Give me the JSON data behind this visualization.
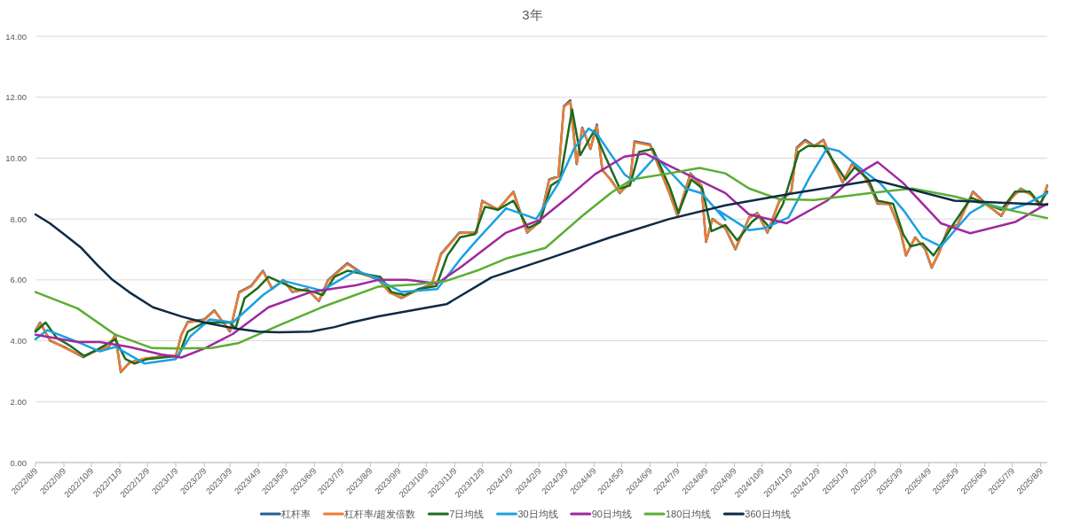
{
  "chart_data": {
    "type": "line",
    "title": "3年",
    "xlim": [
      "2022-08-09",
      "2025-08-16"
    ],
    "ylim": [
      0,
      14
    ],
    "xticks": [
      {
        "value": "2022-08-09",
        "label": "2022/8/9"
      },
      {
        "value": "2022-09-09",
        "label": "2022/9/9"
      },
      {
        "value": "2022-10-09",
        "label": "2022/10/9"
      },
      {
        "value": "2022-11-09",
        "label": "2022/11/9"
      },
      {
        "value": "2022-12-09",
        "label": "2022/12/9"
      },
      {
        "value": "2023-01-09",
        "label": "2023/1/9"
      },
      {
        "value": "2023-02-09",
        "label": "2023/2/9"
      },
      {
        "value": "2023-03-09",
        "label": "2023/3/9"
      },
      {
        "value": "2023-04-09",
        "label": "2023/4/9"
      },
      {
        "value": "2023-05-09",
        "label": "2023/5/9"
      },
      {
        "value": "2023-06-09",
        "label": "2023/6/9"
      },
      {
        "value": "2023-07-09",
        "label": "2023/7/9"
      },
      {
        "value": "2023-08-09",
        "label": "2023/8/9"
      },
      {
        "value": "2023-09-09",
        "label": "2023/9/9"
      },
      {
        "value": "2023-10-09",
        "label": "2023/10/9"
      },
      {
        "value": "2023-11-09",
        "label": "2023/11/9"
      },
      {
        "value": "2023-12-09",
        "label": "2023/12/9"
      },
      {
        "value": "2024-01-09",
        "label": "2024/1/9"
      },
      {
        "value": "2024-02-09",
        "label": "2024/2/9"
      },
      {
        "value": "2024-03-09",
        "label": "2024/3/9"
      },
      {
        "value": "2024-04-09",
        "label": "2024/4/9"
      },
      {
        "value": "2024-05-09",
        "label": "2024/5/9"
      },
      {
        "value": "2024-06-09",
        "label": "2024/6/9"
      },
      {
        "value": "2024-07-09",
        "label": "2024/7/9"
      },
      {
        "value": "2024-08-09",
        "label": "2024/8/9"
      },
      {
        "value": "2024-09-09",
        "label": "2024/9/9"
      },
      {
        "value": "2024-10-09",
        "label": "2024/10/9"
      },
      {
        "value": "2024-11-09",
        "label": "2024/11/9"
      },
      {
        "value": "2024-12-09",
        "label": "2024/12/9"
      },
      {
        "value": "2025-01-09",
        "label": "2025/1/9"
      },
      {
        "value": "2025-02-09",
        "label": "2025/2/9"
      },
      {
        "value": "2025-03-09",
        "label": "2025/3/9"
      },
      {
        "value": "2025-04-09",
        "label": "2025/4/9"
      },
      {
        "value": "2025-05-09",
        "label": "2025/5/9"
      },
      {
        "value": "2025-06-09",
        "label": "2025/6/9"
      },
      {
        "value": "2025-07-09",
        "label": "2025/7/9"
      },
      {
        "value": "2025-08-09",
        "label": "2025/8/9"
      }
    ],
    "yticks": [
      {
        "value": 0,
        "label": "0.00"
      },
      {
        "value": 2,
        "label": "2.00"
      },
      {
        "value": 4,
        "label": "4.00"
      },
      {
        "value": 6,
        "label": "6.00"
      },
      {
        "value": 8,
        "label": "8.00"
      },
      {
        "value": 10,
        "label": "10.00"
      },
      {
        "value": 12,
        "label": "12.00"
      },
      {
        "value": 14,
        "label": "14.00"
      }
    ],
    "grid": "y",
    "legend": "bottom",
    "series": [
      {
        "name": "杠杆率",
        "color": "#255e91",
        "x": [
          "2022-08-09",
          "2022-08-14",
          "2022-08-25",
          "2022-09-09",
          "2022-09-30",
          "2022-10-15",
          "2022-10-28",
          "2022-11-04",
          "2022-11-10",
          "2022-11-20",
          "2022-12-06",
          "2022-12-25",
          "2023-01-09",
          "2023-01-15",
          "2023-01-22",
          "2023-02-09",
          "2023-02-20",
          "2023-03-09",
          "2023-03-19",
          "2023-04-01",
          "2023-04-14",
          "2023-04-24",
          "2023-05-06",
          "2023-05-16",
          "2023-06-01",
          "2023-06-14",
          "2023-06-24",
          "2023-07-15",
          "2023-08-01",
          "2023-08-18",
          "2023-08-30",
          "2023-09-12",
          "2023-10-01",
          "2023-10-15",
          "2023-10-25",
          "2023-11-14",
          "2023-12-03",
          "2023-12-09",
          "2023-12-26",
          "2024-01-12",
          "2024-01-27",
          "2024-02-10",
          "2024-02-20",
          "2024-03-01",
          "2024-03-07",
          "2024-03-14",
          "2024-03-21",
          "2024-03-27",
          "2024-04-05",
          "2024-04-12",
          "2024-04-18",
          "2024-04-27",
          "2024-05-07",
          "2024-05-18",
          "2024-05-23",
          "2024-06-09",
          "2024-06-30",
          "2024-07-09",
          "2024-07-23",
          "2024-08-04",
          "2024-08-09",
          "2024-08-16",
          "2024-08-30",
          "2024-09-10",
          "2024-09-25",
          "2024-10-04",
          "2024-10-15",
          "2024-10-28",
          "2024-11-10",
          "2024-11-16",
          "2024-11-25",
          "2024-12-05",
          "2024-12-15",
          "2024-12-25",
          "2025-01-05",
          "2025-01-15",
          "2025-01-25",
          "2025-02-05",
          "2025-02-12",
          "2025-02-25",
          "2025-03-09",
          "2025-03-15",
          "2025-03-25",
          "2025-04-05",
          "2025-04-12",
          "2025-04-20",
          "2025-04-30",
          "2025-05-10",
          "2025-05-27",
          "2025-06-10",
          "2025-06-27",
          "2025-07-08",
          "2025-07-18",
          "2025-07-30",
          "2025-08-08",
          "2025-08-16"
        ],
        "values": [
          4.33,
          4.6,
          4.0,
          3.8,
          3.46,
          3.7,
          3.8,
          4.2,
          2.97,
          3.3,
          3.4,
          3.5,
          3.5,
          4.2,
          4.62,
          4.7,
          5.0,
          4.3,
          5.6,
          5.8,
          6.3,
          5.7,
          6.0,
          5.6,
          5.7,
          5.3,
          6.0,
          6.55,
          6.2,
          6.0,
          5.6,
          5.4,
          5.7,
          5.85,
          6.85,
          7.55,
          7.55,
          8.6,
          8.3,
          8.9,
          7.55,
          7.93,
          9.3,
          9.4,
          11.7,
          11.9,
          9.8,
          11.0,
          10.3,
          11.1,
          9.6,
          9.3,
          8.85,
          9.2,
          10.55,
          10.45,
          8.85,
          8.1,
          9.5,
          9.1,
          7.25,
          8.0,
          7.7,
          7.0,
          8.05,
          8.2,
          7.55,
          8.6,
          8.9,
          10.35,
          10.6,
          10.4,
          10.6,
          9.9,
          9.2,
          9.8,
          9.6,
          9.0,
          8.5,
          8.5,
          7.6,
          6.8,
          7.4,
          7.0,
          6.4,
          6.9,
          7.7,
          7.8,
          8.9,
          8.5,
          8.1,
          8.7,
          9.0,
          8.8,
          8.4,
          9.1
        ]
      },
      {
        "name": "杠杆率/超发倍数",
        "color": "#ed7d31",
        "x": [
          "2022-08-09",
          "2022-08-14",
          "2022-08-25",
          "2022-09-09",
          "2022-09-30",
          "2022-10-15",
          "2022-10-28",
          "2022-11-04",
          "2022-11-10",
          "2022-11-20",
          "2022-12-06",
          "2022-12-25",
          "2023-01-09",
          "2023-01-15",
          "2023-01-22",
          "2023-02-09",
          "2023-02-20",
          "2023-03-09",
          "2023-03-19",
          "2023-04-01",
          "2023-04-14",
          "2023-04-24",
          "2023-05-06",
          "2023-05-16",
          "2023-06-01",
          "2023-06-14",
          "2023-06-24",
          "2023-07-15",
          "2023-08-01",
          "2023-08-18",
          "2023-08-30",
          "2023-09-12",
          "2023-10-01",
          "2023-10-15",
          "2023-10-25",
          "2023-11-14",
          "2023-12-03",
          "2023-12-09",
          "2023-12-26",
          "2024-01-12",
          "2024-01-27",
          "2024-02-10",
          "2024-02-20",
          "2024-03-01",
          "2024-03-07",
          "2024-03-14",
          "2024-03-21",
          "2024-03-27",
          "2024-04-05",
          "2024-04-12",
          "2024-04-18",
          "2024-04-27",
          "2024-05-07",
          "2024-05-18",
          "2024-05-23",
          "2024-06-09",
          "2024-06-30",
          "2024-07-09",
          "2024-07-23",
          "2024-08-04",
          "2024-08-09",
          "2024-08-16",
          "2024-08-30",
          "2024-09-10",
          "2024-09-25",
          "2024-10-04",
          "2024-10-15",
          "2024-10-28",
          "2024-11-10",
          "2024-11-16",
          "2024-11-25",
          "2024-12-05",
          "2024-12-15",
          "2024-12-25",
          "2025-01-05",
          "2025-01-15",
          "2025-01-25",
          "2025-02-05",
          "2025-02-12",
          "2025-02-25",
          "2025-03-09",
          "2025-03-15",
          "2025-03-25",
          "2025-04-05",
          "2025-04-12",
          "2025-04-20",
          "2025-04-30",
          "2025-05-10",
          "2025-05-27",
          "2025-06-10",
          "2025-06-27",
          "2025-07-08",
          "2025-07-18",
          "2025-07-30",
          "2025-08-08",
          "2025-08-16"
        ],
        "values": [
          4.3,
          4.58,
          4.02,
          3.78,
          3.48,
          3.68,
          3.82,
          4.18,
          2.99,
          3.28,
          3.42,
          3.48,
          3.52,
          4.18,
          4.6,
          4.68,
          4.98,
          4.32,
          5.58,
          5.78,
          6.28,
          5.72,
          5.98,
          5.62,
          5.68,
          5.32,
          5.98,
          6.52,
          6.18,
          6.02,
          5.58,
          5.42,
          5.68,
          5.83,
          6.83,
          7.53,
          7.57,
          8.58,
          8.32,
          8.88,
          7.57,
          7.91,
          9.28,
          9.38,
          11.68,
          11.85,
          9.82,
          10.98,
          10.32,
          11.05,
          9.62,
          9.28,
          8.87,
          9.18,
          10.52,
          10.42,
          8.87,
          8.12,
          9.48,
          9.08,
          7.27,
          7.98,
          7.72,
          7.02,
          8.03,
          8.18,
          7.57,
          8.58,
          8.88,
          10.32,
          10.55,
          10.38,
          10.58,
          9.88,
          9.22,
          9.78,
          9.58,
          9.02,
          8.52,
          8.48,
          7.62,
          6.82,
          7.38,
          7.02,
          6.42,
          6.88,
          7.68,
          7.78,
          8.88,
          8.48,
          8.12,
          8.68,
          8.98,
          8.78,
          8.42,
          9.08
        ]
      },
      {
        "name": "7日均线",
        "color": "#1e6b1e",
        "x": [
          "2022-08-09",
          "2022-08-20",
          "2022-09-01",
          "2022-09-15",
          "2022-10-01",
          "2022-10-15",
          "2022-11-04",
          "2022-11-15",
          "2022-11-25",
          "2022-12-09",
          "2022-12-25",
          "2023-01-12",
          "2023-01-22",
          "2023-02-09",
          "2023-02-25",
          "2023-03-09",
          "2023-03-15",
          "2023-03-25",
          "2023-04-09",
          "2023-04-20",
          "2023-05-05",
          "2023-05-20",
          "2023-06-09",
          "2023-06-18",
          "2023-07-01",
          "2023-07-15",
          "2023-08-01",
          "2023-08-20",
          "2023-09-01",
          "2023-09-15",
          "2023-10-01",
          "2023-10-20",
          "2023-11-01",
          "2023-11-15",
          "2023-12-01",
          "2023-12-12",
          "2023-12-26",
          "2024-01-12",
          "2024-01-28",
          "2024-02-10",
          "2024-02-22",
          "2024-03-03",
          "2024-03-16",
          "2024-03-25",
          "2024-04-09",
          "2024-04-22",
          "2024-05-07",
          "2024-05-18",
          "2024-05-28",
          "2024-06-12",
          "2024-07-01",
          "2024-07-10",
          "2024-07-24",
          "2024-08-05",
          "2024-08-15",
          "2024-08-30",
          "2024-09-12",
          "2024-09-28",
          "2024-10-06",
          "2024-10-18",
          "2024-11-01",
          "2024-11-18",
          "2024-11-28",
          "2024-12-15",
          "2024-12-28",
          "2025-01-08",
          "2025-01-18",
          "2025-02-02",
          "2025-02-12",
          "2025-03-01",
          "2025-03-12",
          "2025-03-20",
          "2025-04-02",
          "2025-04-14",
          "2025-04-25",
          "2025-05-05",
          "2025-05-25",
          "2025-06-10",
          "2025-06-27",
          "2025-07-12",
          "2025-07-28",
          "2025-08-08",
          "2025-08-16"
        ],
        "values": [
          4.3,
          4.6,
          4.1,
          3.85,
          3.5,
          3.7,
          4.05,
          3.4,
          3.25,
          3.4,
          3.45,
          3.5,
          4.3,
          4.6,
          4.6,
          4.6,
          4.4,
          5.4,
          5.75,
          6.1,
          5.9,
          5.7,
          5.6,
          5.5,
          6.1,
          6.3,
          6.2,
          6.1,
          5.6,
          5.5,
          5.7,
          5.8,
          6.8,
          7.4,
          7.5,
          8.4,
          8.3,
          8.6,
          7.7,
          7.9,
          9.1,
          9.3,
          11.6,
          10.1,
          10.9,
          10.0,
          9.0,
          9.1,
          10.2,
          10.3,
          9.0,
          8.2,
          9.3,
          9.0,
          7.6,
          7.8,
          7.3,
          7.9,
          8.1,
          7.7,
          8.5,
          10.2,
          10.4,
          10.4,
          9.8,
          9.3,
          9.7,
          9.3,
          8.6,
          8.5,
          7.5,
          7.1,
          7.2,
          6.8,
          7.3,
          7.8,
          8.7,
          8.5,
          8.3,
          8.9,
          8.9,
          8.5,
          8.9
        ]
      },
      {
        "name": "30日均线",
        "color": "#1ba1e2",
        "x": [
          "2022-08-09",
          "2022-08-22",
          "2022-09-24",
          "2022-10-18",
          "2022-11-04",
          "2022-12-06",
          "2023-01-09",
          "2023-01-25",
          "2023-02-15",
          "2023-03-12",
          "2023-04-14",
          "2023-05-06",
          "2023-06-17",
          "2023-07-24",
          "2023-08-18",
          "2023-08-11",
          "2023-09-12",
          "2023-10-21",
          "2023-11-17",
          "2023-12-03",
          "2024-01-04",
          "2024-02-06",
          "2024-03-01",
          "2024-03-18",
          "2024-04-03",
          "2024-04-12",
          "2024-05-12",
          "2024-05-22",
          "2024-06-15",
          "2024-07-18",
          "2024-08-04",
          "2024-08-30",
          "2024-08-23",
          "2024-09-25",
          "2024-10-12",
          "2024-11-07",
          "2024-11-30",
          "2024-12-19",
          "2025-01-01",
          "2025-01-27",
          "2025-02-15",
          "2025-03-12",
          "2025-04-02",
          "2025-04-22",
          "2025-05-24",
          "2025-06-10",
          "2025-07-06",
          "2025-07-25",
          "2025-08-16"
        ],
        "values": [
          4.05,
          4.35,
          3.96,
          3.65,
          3.8,
          3.25,
          3.4,
          4.15,
          4.7,
          4.6,
          5.5,
          5.97,
          5.65,
          6.3,
          6.05,
          6.1,
          5.6,
          5.7,
          6.75,
          7.3,
          8.35,
          8.0,
          9.17,
          10.3,
          10.97,
          10.8,
          9.47,
          9.25,
          10.05,
          9.0,
          8.85,
          7.97,
          8.27,
          7.63,
          7.7,
          8.05,
          9.37,
          10.33,
          10.23,
          9.6,
          9.17,
          8.3,
          7.4,
          7.1,
          8.2,
          8.5,
          8.3,
          8.5,
          8.85
        ]
      },
      {
        "name": "90日均线",
        "color": "#a0289e",
        "x": [
          "2022-08-09",
          "2022-09-24",
          "2022-10-18",
          "2022-11-19",
          "2022-12-24",
          "2023-01-15",
          "2023-02-10",
          "2023-03-12",
          "2023-04-20",
          "2023-06-05",
          "2023-07-24",
          "2023-08-18",
          "2023-09-18",
          "2023-10-21",
          "2023-11-17",
          "2024-01-04",
          "2024-02-10",
          "2024-03-11",
          "2024-04-10",
          "2024-05-12",
          "2024-06-04",
          "2024-06-30",
          "2024-08-01",
          "2024-08-30",
          "2024-09-25",
          "2024-11-05",
          "2024-12-19",
          "2025-01-21",
          "2025-02-12",
          "2025-03-12",
          "2025-04-22",
          "2025-05-24",
          "2025-07-12",
          "2025-08-16"
        ],
        "values": [
          4.2,
          3.96,
          3.96,
          3.8,
          3.55,
          3.45,
          3.76,
          4.22,
          5.1,
          5.6,
          5.82,
          6.0,
          6.0,
          5.88,
          6.45,
          7.55,
          7.97,
          8.7,
          9.47,
          10.05,
          10.15,
          9.75,
          9.28,
          8.85,
          8.15,
          7.86,
          8.6,
          9.47,
          9.87,
          9.18,
          7.86,
          7.53,
          7.9,
          8.5
        ]
      },
      {
        "name": "180日均线",
        "color": "#5aae32",
        "x": [
          "2022-08-09",
          "2022-09-24",
          "2022-11-04",
          "2022-12-14",
          "2023-01-09",
          "2023-02-17",
          "2023-03-19",
          "2023-05-01",
          "2023-06-17",
          "2023-08-18",
          "2023-09-28",
          "2023-10-31",
          "2023-12-03",
          "2024-01-04",
          "2024-02-16",
          "2024-03-27",
          "2024-04-27",
          "2024-05-20",
          "2024-06-30",
          "2024-08-02",
          "2024-08-30",
          "2024-09-25",
          "2024-10-28",
          "2024-12-05",
          "2025-02-03",
          "2025-03-22",
          "2025-05-07",
          "2025-06-27",
          "2025-08-16"
        ],
        "values": [
          5.6,
          5.06,
          4.2,
          3.76,
          3.75,
          3.76,
          3.93,
          4.5,
          5.1,
          5.78,
          5.85,
          5.97,
          6.3,
          6.7,
          7.05,
          8.1,
          8.85,
          9.3,
          9.5,
          9.68,
          9.5,
          9.0,
          8.65,
          8.62,
          8.85,
          9.0,
          8.74,
          8.35,
          8.03
        ]
      },
      {
        "name": "360日均线",
        "color": "#0d2b45",
        "x": [
          "2022-08-09",
          "2022-08-25",
          "2022-09-09",
          "2022-09-28",
          "2022-10-15",
          "2022-11-01",
          "2022-11-19",
          "2022-12-15",
          "2023-01-15",
          "2023-02-09",
          "2023-03-12",
          "2023-04-09",
          "2023-05-01",
          "2023-06-05",
          "2023-07-01",
          "2023-07-19",
          "2023-08-18",
          "2023-10-31",
          "2023-12-19",
          "2024-02-24",
          "2024-04-27",
          "2024-06-30",
          "2024-08-30",
          "2024-11-13",
          "2025-02-09",
          "2025-05-07",
          "2025-08-16"
        ],
        "values": [
          8.15,
          7.85,
          7.5,
          7.05,
          6.5,
          6.0,
          5.6,
          5.1,
          4.8,
          4.6,
          4.42,
          4.3,
          4.28,
          4.3,
          4.45,
          4.6,
          4.8,
          5.2,
          6.08,
          6.75,
          7.4,
          8.0,
          8.45,
          8.85,
          9.28,
          8.6,
          8.47
        ]
      }
    ]
  }
}
